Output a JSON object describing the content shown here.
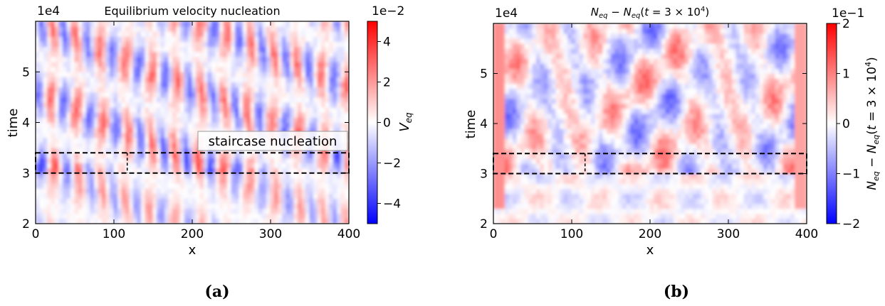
{
  "figure": {
    "subfigure_labels": [
      "(a)",
      "(b)"
    ]
  },
  "chart_data": [
    {
      "type": "heatmap",
      "title": "Equilibrium velocity nucleation",
      "xlabel": "x",
      "ylabel": "time",
      "xlim": [
        0,
        400
      ],
      "ylim": [
        2,
        6
      ],
      "xticks": [
        "0",
        "100",
        "200",
        "300",
        "400"
      ],
      "yticks": [
        "2",
        "3",
        "4",
        "5"
      ],
      "y_offset_label": "1e4",
      "colorbar": {
        "label": "V_eq",
        "range": [
          -5,
          5
        ],
        "ticks": [
          "−4",
          "−2",
          "0",
          "2",
          "4"
        ],
        "tick_values": [
          -4,
          -2,
          0,
          2,
          4
        ],
        "offset_label": "1e−2",
        "colormap": "bwr",
        "colors": {
          "low": "#0000ff",
          "mid": "#ffffff",
          "high": "#ff0000"
        }
      },
      "dashed_box": {
        "x": [
          0,
          400
        ],
        "y": [
          3.0,
          3.4
        ]
      },
      "dashed_vertical_x": 117,
      "annotation": "staircase nucleation"
    },
    {
      "type": "heatmap",
      "title": "N_eq − N_eq(t = 3 × 10^4)",
      "xlabel": "x",
      "ylabel": "time",
      "xlim": [
        0,
        400
      ],
      "ylim": [
        2,
        6
      ],
      "xticks": [
        "0",
        "100",
        "200",
        "300",
        "400"
      ],
      "yticks": [
        "2",
        "3",
        "4",
        "5"
      ],
      "y_offset_label": "1e4",
      "colorbar": {
        "label": "N_eq − N_eq(t = 3 × 10^4)",
        "range": [
          -2,
          2
        ],
        "ticks": [
          "−2",
          "−1",
          "0",
          "1",
          "2"
        ],
        "tick_values": [
          -2,
          -1,
          0,
          1,
          2
        ],
        "offset_label": "1e−1",
        "colormap": "bwr",
        "colors": {
          "low": "#0000ff",
          "mid": "#ffffff",
          "high": "#ff0000"
        }
      },
      "dashed_box": {
        "x": [
          0,
          400
        ],
        "y": [
          3.0,
          3.4
        ]
      },
      "dashed_vertical_x": 117
    }
  ]
}
